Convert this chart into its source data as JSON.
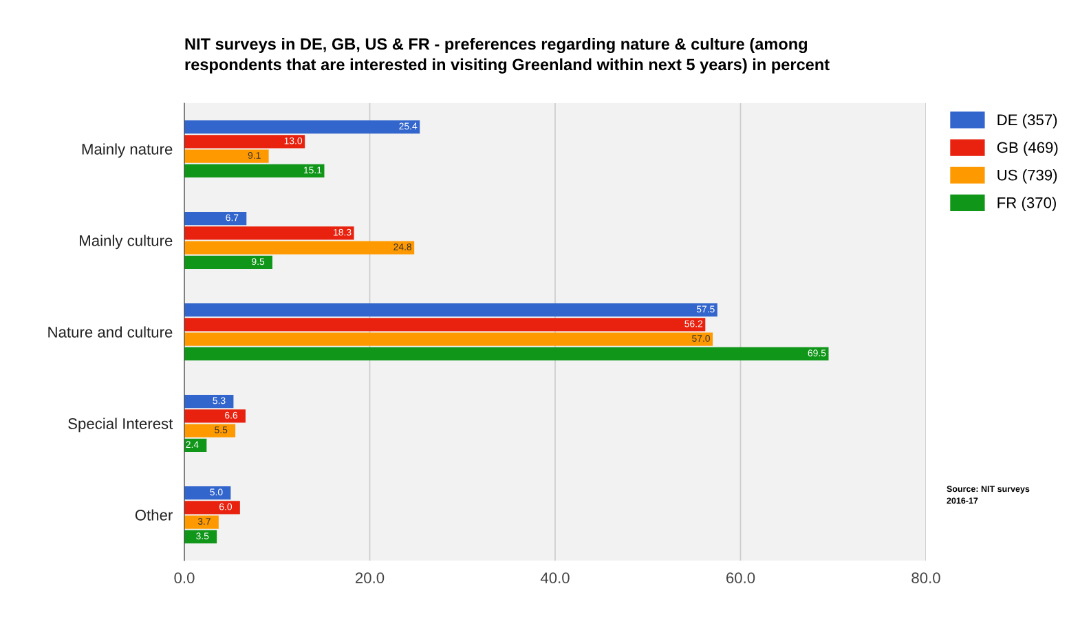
{
  "chart_data": {
    "type": "bar",
    "orientation": "horizontal",
    "title": "NIT surveys in DE, GB, US & FR - preferences regarding nature & culture (among\nrespondents that are interested in visiting Greenland within next 5 years) in percent",
    "categories": [
      "Mainly nature",
      "Mainly culture",
      "Nature and culture",
      "Special Interest",
      "Other"
    ],
    "series": [
      {
        "name": "DE (357)",
        "color": "#3366cc",
        "values": [
          25.4,
          6.7,
          57.5,
          5.3,
          5.0
        ],
        "value_labels": [
          "25.4",
          "6.7",
          "57.5",
          "5.3",
          "5.0"
        ]
      },
      {
        "name": "GB (469)",
        "color": "#e8220e",
        "values": [
          13.0,
          18.3,
          56.2,
          6.6,
          6.0
        ],
        "value_labels": [
          "13.0",
          "18.3",
          "56.2",
          "6.6",
          "6.0"
        ]
      },
      {
        "name": "US (739)",
        "color": "#ff9900",
        "values": [
          9.1,
          24.8,
          57.0,
          5.5,
          3.7
        ],
        "value_labels": [
          "9.1",
          "24.8",
          "57.0",
          "5.5",
          "3.7"
        ]
      },
      {
        "name": "FR (370)",
        "color": "#109618",
        "values": [
          15.1,
          9.5,
          69.5,
          2.4,
          3.5
        ],
        "value_labels": [
          "15.1",
          "9.5",
          "69.5",
          "2.4",
          "3.5"
        ]
      }
    ],
    "xlim": [
      0,
      80
    ],
    "xticks": [
      {
        "value": 0,
        "label": "0.0"
      },
      {
        "value": 20,
        "label": "20.0"
      },
      {
        "value": 40,
        "label": "40.0"
      },
      {
        "value": 60,
        "label": "60.0"
      },
      {
        "value": 80,
        "label": "80.0"
      }
    ],
    "grid": "x",
    "legend": "top right",
    "annotations": [
      "Source: NIT surveys\n2016-17"
    ]
  }
}
